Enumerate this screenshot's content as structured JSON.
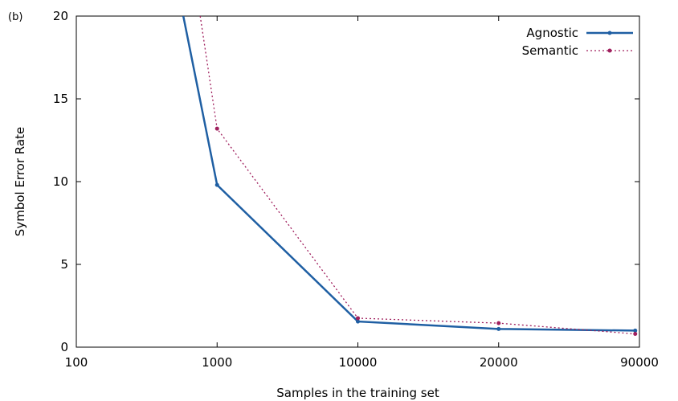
{
  "panel_label": "(b)",
  "chart_data": {
    "type": "line",
    "title": "",
    "xlabel": "Samples in the training set",
    "ylabel": "Symbol Error Rate",
    "categories": [
      "100",
      "1000",
      "10000",
      "20000",
      "90000"
    ],
    "ylim": [
      0,
      20
    ],
    "yticks": [
      "0",
      "5",
      "10",
      "15",
      "20"
    ],
    "grid": false,
    "legend_position": "top-right",
    "series": [
      {
        "name": "Agnostic",
        "color": "#1f5fa3",
        "style": "solid",
        "x": [
          0.76,
          1,
          2,
          3,
          3.97
        ],
        "y": [
          20,
          9.8,
          1.55,
          1.1,
          1.0
        ]
      },
      {
        "name": "Semantic",
        "color": "#a0205e",
        "style": "dotted",
        "x": [
          0.88,
          1,
          2,
          3,
          3.97
        ],
        "y": [
          20,
          13.2,
          1.75,
          1.45,
          0.8
        ]
      }
    ]
  }
}
